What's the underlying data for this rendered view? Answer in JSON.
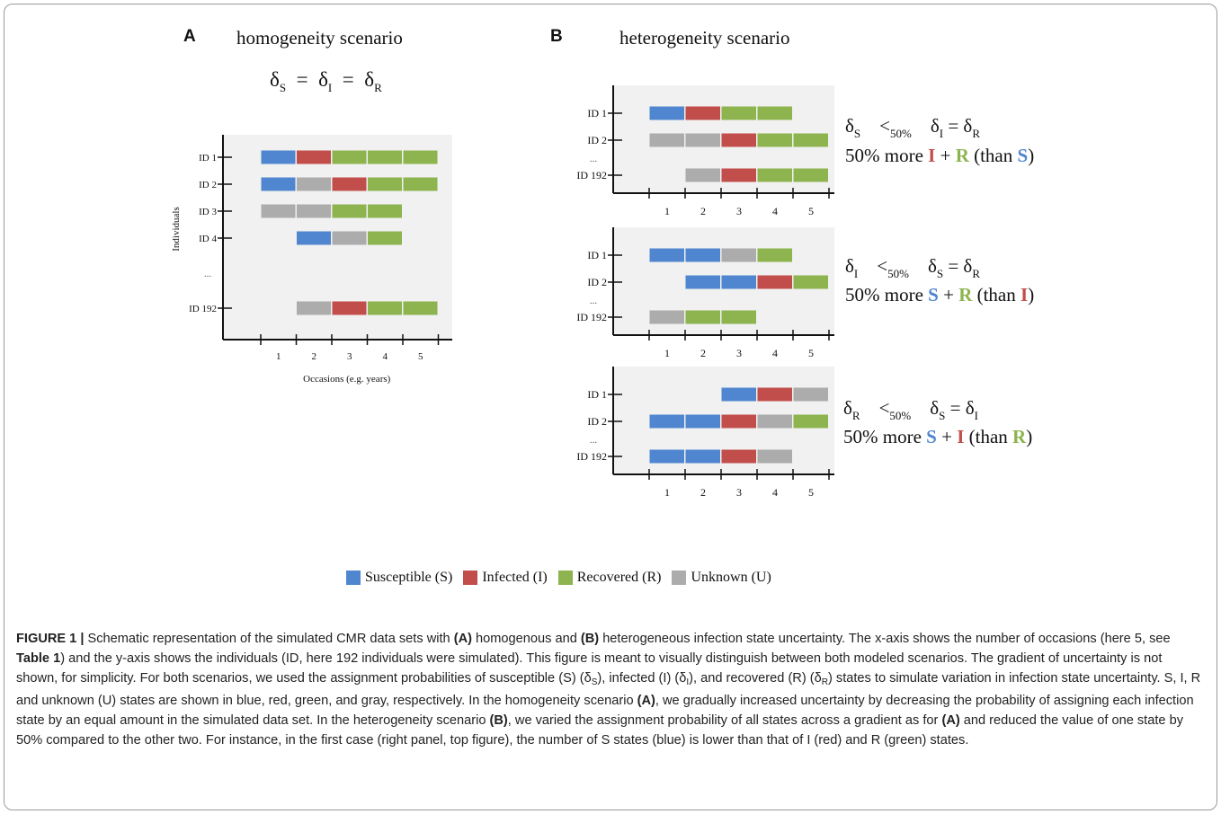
{
  "panelA": {
    "letter": "A",
    "title": "homogeneity scenario",
    "equation": {
      "d1": "δ",
      "s1": "S",
      "eq1": "=",
      "d2": "δ",
      "s2": "I",
      "eq2": "=",
      "d3": "δ",
      "s3": "R"
    },
    "y_axis_label": "Individuals",
    "x_axis_label": "Occasions (e.g. years)",
    "ticks": [
      "1",
      "2",
      "3",
      "4",
      "5"
    ],
    "ellipsis": "...",
    "rows": [
      {
        "id": "ID 1",
        "start": 1,
        "states": [
          "S",
          "I",
          "R",
          "R",
          "R"
        ]
      },
      {
        "id": "ID 2",
        "start": 1,
        "states": [
          "S",
          "U",
          "I",
          "R",
          "R"
        ]
      },
      {
        "id": "ID 3",
        "start": 1,
        "states": [
          "U",
          "U",
          "R",
          "R"
        ]
      },
      {
        "id": "ID 4",
        "start": 2,
        "states": [
          "S",
          "U",
          "R"
        ]
      },
      {
        "id": "ID 192",
        "start": 2,
        "states": [
          "U",
          "I",
          "R",
          "R"
        ]
      }
    ]
  },
  "panelB": {
    "letter": "B",
    "title": "heterogeneity scenario",
    "ticks": [
      "1",
      "2",
      "3",
      "4",
      "5"
    ],
    "ellipsis": "...",
    "subplots": [
      {
        "rows": [
          {
            "id": "ID 1",
            "start": 1,
            "states": [
              "S",
              "I",
              "R",
              "R"
            ]
          },
          {
            "id": "ID 2",
            "start": 1,
            "states": [
              "U",
              "U",
              "I",
              "R",
              "R"
            ]
          },
          {
            "id": "ID 192",
            "start": 2,
            "states": [
              "U",
              "I",
              "R",
              "R"
            ]
          }
        ],
        "condition": {
          "lhs_d": "δ",
          "lhs_s": "S",
          "lt": "<",
          "lt_s": "50%",
          "r1_d": "δ",
          "r1_s": "I",
          "eq": "=",
          "r2_d": "δ",
          "r2_s": "R"
        },
        "more": {
          "prefix": "50% more",
          "a": "I",
          "plus": "+",
          "b": "R",
          "than_open": "(than",
          "c": "S",
          "close": ")",
          "a_state": "I",
          "b_state": "R",
          "c_state": "S"
        }
      },
      {
        "rows": [
          {
            "id": "ID 1",
            "start": 1,
            "states": [
              "S",
              "S",
              "U",
              "R"
            ]
          },
          {
            "id": "ID 2",
            "start": 2,
            "states": [
              "S",
              "S",
              "I",
              "R"
            ]
          },
          {
            "id": "ID 192",
            "start": 1,
            "states": [
              "U",
              "R",
              "R"
            ]
          }
        ],
        "condition": {
          "lhs_d": "δ",
          "lhs_s": "I",
          "lt": "<",
          "lt_s": "50%",
          "r1_d": "δ",
          "r1_s": "S",
          "eq": "=",
          "r2_d": "δ",
          "r2_s": "R"
        },
        "more": {
          "prefix": "50% more",
          "a": "S",
          "plus": "+",
          "b": "R",
          "than_open": "(than",
          "c": "I",
          "close": ")",
          "a_state": "S",
          "b_state": "R",
          "c_state": "I"
        }
      },
      {
        "rows": [
          {
            "id": "ID 1",
            "start": 3,
            "states": [
              "S",
              "I",
              "U"
            ]
          },
          {
            "id": "ID 2",
            "start": 1,
            "states": [
              "S",
              "S",
              "I",
              "U",
              "R"
            ]
          },
          {
            "id": "ID 192",
            "start": 1,
            "states": [
              "S",
              "S",
              "I",
              "U"
            ]
          }
        ],
        "condition": {
          "lhs_d": "δ",
          "lhs_s": "R",
          "lt": "<",
          "lt_s": "50%",
          "r1_d": "δ",
          "r1_s": "S",
          "eq": "=",
          "r2_d": "δ",
          "r2_s": "I"
        },
        "more": {
          "prefix": "50% more",
          "a": "S",
          "plus": "+",
          "b": "I",
          "than_open": "(than",
          "c": "R",
          "close": ")",
          "a_state": "S",
          "b_state": "I",
          "c_state": "R"
        }
      }
    ]
  },
  "colors": {
    "S": "#4f86cf",
    "I": "#c14e4a",
    "R": "#8db44e",
    "U": "#acacac",
    "bg": "#f1f1f1"
  },
  "legend": [
    {
      "state": "S",
      "label": "Susceptible (S)"
    },
    {
      "state": "I",
      "label": "Infected (I)"
    },
    {
      "state": "R",
      "label": "Recovered (R)"
    },
    {
      "state": "U",
      "label": "Unknown (U)"
    }
  ],
  "caption": {
    "fig_label": "FIGURE 1 |",
    "t1": " Schematic representation of the simulated CMR data sets with ",
    "a1": "(A)",
    "t2": " homogenous and ",
    "b1": "(B)",
    "t3": " heterogeneous infection state uncertainty. The x-axis shows the number of occasions (here 5, see ",
    "table_ref": "Table 1",
    "t4": ") and the y-axis shows the individuals (ID, here 192 individuals were simulated). This figure is meant to visually distinguish between both modeled scenarios. The gradient of uncertainty is not shown, for simplicity. For both scenarios, we used the assignment probabilities of susceptible (S) (δ",
    "sub_s": "S",
    "t5": "), infected (I) (δ",
    "sub_i": "I",
    "t6": "), and recovered (R) (δ",
    "sub_r": "R",
    "t7": ") states to simulate variation in infection state uncertainty. S, I, R and unknown (U) states are shown in blue, red, green, and gray, respectively. In the homogeneity scenario ",
    "a2": "(A)",
    "t8": ", we gradually increased uncertainty by decreasing the probability of assigning each infection state by an equal amount in the simulated data set. In the heterogeneity scenario ",
    "b2": "(B)",
    "t9": ", we varied the assignment probability of all states across a gradient as for ",
    "a3": "(A)",
    "t10": " and reduced the value of one state by 50% compared to the other two. For instance, in the first case (right panel, top figure), the number of S states (blue) is lower than that of I (red) and R (green) states."
  }
}
